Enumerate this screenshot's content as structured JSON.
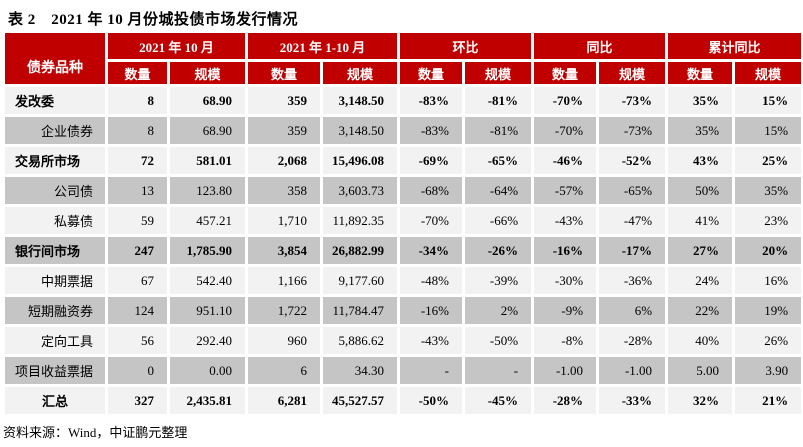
{
  "title": "表 2　2021 年 10 月份城投债市场发行情况",
  "source": "资料来源：Wind，中证鹏元整理",
  "colors": {
    "header_red": "#C00000",
    "row_light": "#F2F2F2",
    "row_dark": "#C5C5C5"
  },
  "table": {
    "corner_header": "债券品种",
    "groups": [
      "2021 年 10 月",
      "2021 年 1-10 月",
      "环比",
      "同比",
      "累计同比"
    ],
    "subheaders": [
      "数量",
      "规模"
    ],
    "rows": [
      {
        "label": "发改委",
        "style": "parent",
        "values": [
          "8",
          "68.90",
          "359",
          "3,148.50",
          "-83%",
          "-81%",
          "-70%",
          "-73%",
          "35%",
          "15%"
        ]
      },
      {
        "label": "企业债券",
        "style": "child",
        "values": [
          "8",
          "68.90",
          "359",
          "3,148.50",
          "-83%",
          "-81%",
          "-70%",
          "-73%",
          "35%",
          "15%"
        ]
      },
      {
        "label": "交易所市场",
        "style": "parent",
        "values": [
          "72",
          "581.01",
          "2,068",
          "15,496.08",
          "-69%",
          "-65%",
          "-46%",
          "-52%",
          "43%",
          "25%"
        ]
      },
      {
        "label": "公司债",
        "style": "child",
        "values": [
          "13",
          "123.80",
          "358",
          "3,603.73",
          "-68%",
          "-64%",
          "-57%",
          "-65%",
          "50%",
          "35%"
        ]
      },
      {
        "label": "私募债",
        "style": "child",
        "values": [
          "59",
          "457.21",
          "1,710",
          "11,892.35",
          "-70%",
          "-66%",
          "-43%",
          "-47%",
          "41%",
          "23%"
        ]
      },
      {
        "label": "银行间市场",
        "style": "parent",
        "values": [
          "247",
          "1,785.90",
          "3,854",
          "26,882.99",
          "-34%",
          "-26%",
          "-16%",
          "-17%",
          "27%",
          "20%"
        ]
      },
      {
        "label": "中期票据",
        "style": "child",
        "values": [
          "67",
          "542.40",
          "1,166",
          "9,177.60",
          "-48%",
          "-39%",
          "-30%",
          "-36%",
          "24%",
          "16%"
        ]
      },
      {
        "label": "短期融资券",
        "style": "child",
        "values": [
          "124",
          "951.10",
          "1,722",
          "11,784.47",
          "-16%",
          "2%",
          "-9%",
          "6%",
          "22%",
          "19%"
        ]
      },
      {
        "label": "定向工具",
        "style": "child",
        "values": [
          "56",
          "292.40",
          "960",
          "5,886.62",
          "-43%",
          "-50%",
          "-8%",
          "-28%",
          "40%",
          "26%"
        ]
      },
      {
        "label": "项目收益票据",
        "style": "child",
        "values": [
          "0",
          "0.00",
          "6",
          "34.30",
          "-",
          "-",
          "-1.00",
          "-1.00",
          "5.00",
          "3.90"
        ]
      },
      {
        "label": "汇总",
        "style": "total",
        "values": [
          "327",
          "2,435.81",
          "6,281",
          "45,527.57",
          "-50%",
          "-45%",
          "-28%",
          "-33%",
          "32%",
          "21%"
        ]
      }
    ]
  }
}
